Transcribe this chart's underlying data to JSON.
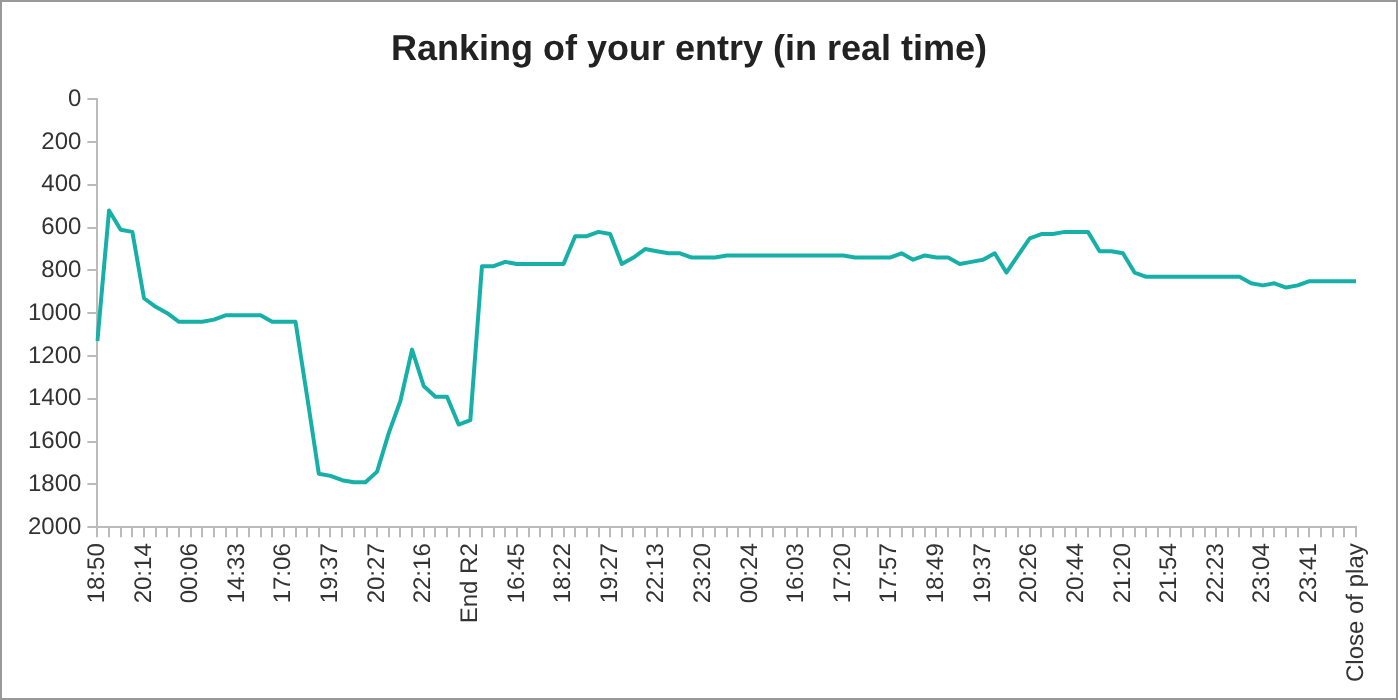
{
  "chart_data": {
    "type": "line",
    "title": "Ranking of your entry (in real time)",
    "categories": [
      "18:50",
      null,
      null,
      null,
      "20:14",
      null,
      null,
      null,
      "00:06",
      null,
      null,
      null,
      "14:33",
      null,
      null,
      null,
      "17:06",
      null,
      null,
      null,
      "19:37",
      null,
      null,
      null,
      "20:27",
      null,
      null,
      null,
      "22:16",
      null,
      null,
      null,
      "End R2",
      null,
      null,
      null,
      "16:45",
      null,
      null,
      null,
      "18:22",
      null,
      null,
      null,
      "19:27",
      null,
      null,
      null,
      "22:13",
      null,
      null,
      null,
      "23:20",
      null,
      null,
      null,
      "00:24",
      null,
      null,
      null,
      "16:03",
      null,
      null,
      null,
      "17:20",
      null,
      null,
      null,
      "17:57",
      null,
      null,
      null,
      "18:49",
      null,
      null,
      null,
      "19:37",
      null,
      null,
      null,
      "20:26",
      null,
      null,
      null,
      "20:44",
      null,
      null,
      null,
      "21:20",
      null,
      null,
      null,
      "21:54",
      null,
      null,
      null,
      "22:23",
      null,
      null,
      null,
      "23:04",
      null,
      null,
      null,
      "23:41",
      null,
      null,
      null,
      "Close of play"
    ],
    "series": [
      {
        "color": "#17b0a8",
        "values": [
          1130,
          520,
          610,
          620,
          930,
          970,
          1000,
          1040,
          1040,
          1040,
          1030,
          1010,
          1010,
          1010,
          1010,
          1040,
          1040,
          1040,
          1390,
          1750,
          1760,
          1780,
          1790,
          1790,
          1740,
          1560,
          1410,
          1170,
          1340,
          1390,
          1390,
          1520,
          1500,
          780,
          780,
          760,
          770,
          770,
          770,
          770,
          770,
          640,
          640,
          620,
          630,
          770,
          740,
          700,
          710,
          720,
          720,
          740,
          740,
          740,
          730,
          730,
          730,
          730,
          730,
          730,
          730,
          730,
          730,
          730,
          730,
          740,
          740,
          740,
          740,
          720,
          750,
          730,
          740,
          740,
          770,
          760,
          750,
          720,
          810,
          730,
          650,
          630,
          630,
          620,
          620,
          620,
          710,
          710,
          720,
          810,
          830,
          830,
          830,
          830,
          830,
          830,
          830,
          830,
          830,
          860,
          870,
          860,
          880,
          870,
          850,
          850,
          850,
          850,
          850
        ]
      }
    ],
    "ylim": [
      2000,
      0
    ],
    "yticks": [
      0,
      200,
      400,
      600,
      800,
      1000,
      1200,
      1400,
      1600,
      1800,
      2000
    ],
    "grid": false,
    "legend": false,
    "marker": "none",
    "line_style": "solid"
  }
}
